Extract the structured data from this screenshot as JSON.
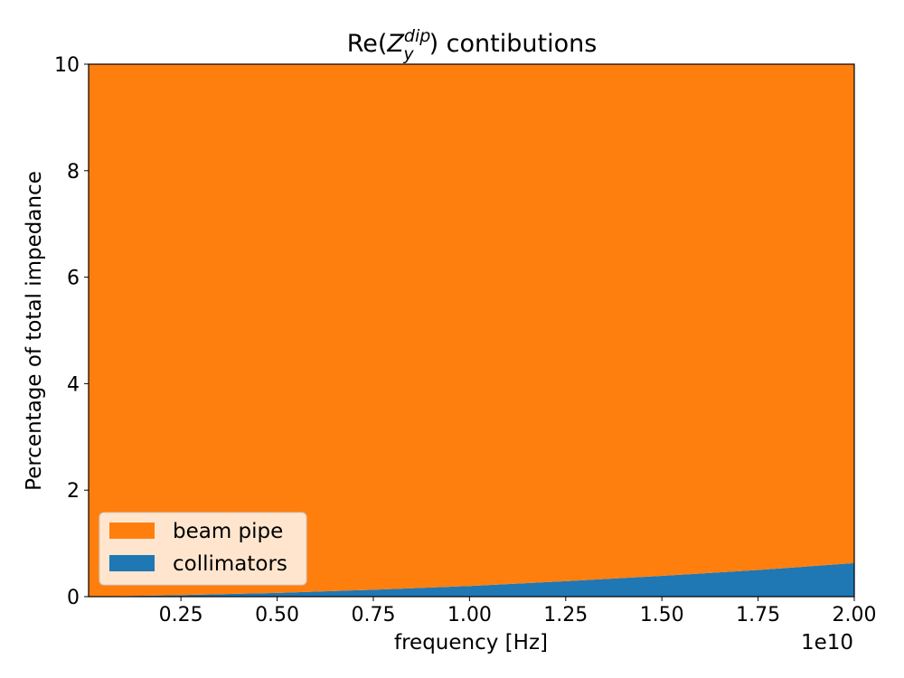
{
  "chart_data": {
    "type": "area",
    "title_main": "Re(",
    "title_sym": "Z",
    "title_sub": "y",
    "title_sup": "dip",
    "title_end": ") contibutions",
    "xlabel": "frequency [Hz]",
    "ylabel": "Percentage of total impedance",
    "x_offset_label": "1e10",
    "xlim": [
      0.01,
      2.0
    ],
    "ylim": [
      0,
      10
    ],
    "xticks": [
      0.25,
      0.5,
      0.75,
      1.0,
      1.25,
      1.5,
      1.75,
      2.0
    ],
    "xtick_labels": [
      "0.25",
      "0.50",
      "0.75",
      "1.00",
      "1.25",
      "1.50",
      "1.75",
      "2.00"
    ],
    "yticks": [
      0,
      2,
      4,
      6,
      8,
      10
    ],
    "ytick_labels": [
      "0",
      "2",
      "4",
      "6",
      "8",
      "10"
    ],
    "x": [
      0.01,
      0.25,
      0.5,
      0.75,
      1.0,
      1.25,
      1.5,
      1.75,
      2.0
    ],
    "stack_order": [
      "collimators",
      "beam pipe"
    ],
    "series": [
      {
        "name": "collimators",
        "color": "#1f77b4",
        "values": [
          0.0,
          0.03,
          0.07,
          0.13,
          0.2,
          0.29,
          0.39,
          0.5,
          0.63
        ]
      },
      {
        "name": "beam pipe",
        "color": "#ff7f0e",
        "values": [
          10.0,
          9.97,
          9.93,
          9.87,
          9.8,
          9.71,
          9.61,
          9.5,
          9.37
        ]
      }
    ],
    "legend": {
      "placement": "lower-left",
      "entries": [
        {
          "label": "beam pipe",
          "color": "#ff7f0e"
        },
        {
          "label": "collimators",
          "color": "#1f77b4"
        }
      ]
    },
    "grid": false
  }
}
